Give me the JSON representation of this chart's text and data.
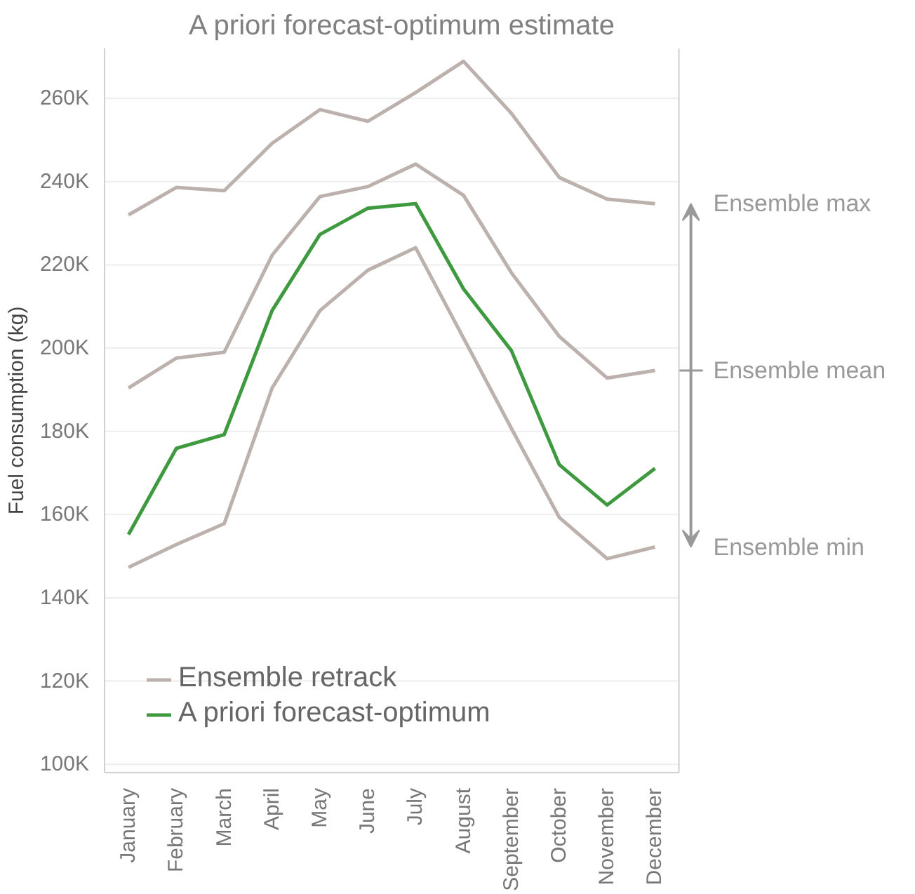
{
  "chart_data": {
    "type": "line",
    "title": "A priori forecast-optimum estimate",
    "ylabel": "Fuel consumption (kg)",
    "categories": [
      "January",
      "February",
      "March",
      "April",
      "May",
      "June",
      "July",
      "August",
      "September",
      "October",
      "November",
      "December"
    ],
    "series": [
      {
        "name": "Ensemble retrack",
        "color": "#bcb1ad",
        "values": [
          232000,
          238600,
          237800,
          249200,
          257300,
          254500,
          261400,
          268900,
          256400,
          241000,
          235800,
          234700
        ]
      },
      {
        "color": "#bcb1ad",
        "values": [
          190400,
          197600,
          199000,
          222300,
          236400,
          238800,
          244200,
          236700,
          218100,
          202800,
          192800,
          194600
        ]
      },
      {
        "color": "#bcb1ad",
        "values": [
          147300,
          152800,
          157800,
          190400,
          209000,
          218700,
          224100,
          202400,
          180700,
          159300,
          149400,
          152200
        ]
      },
      {
        "name": "A priori forecast-optimum",
        "color": "#3f9a3f",
        "values": [
          155200,
          175900,
          179200,
          209000,
          227300,
          233600,
          234700,
          214200,
          199400,
          172000,
          162300,
          171100
        ]
      }
    ],
    "ylim": [
      98000,
      272000
    ],
    "yticks": [
      {
        "value": 100000,
        "label": "100K"
      },
      {
        "value": 120000,
        "label": "120K"
      },
      {
        "value": 140000,
        "label": "140K"
      },
      {
        "value": 160000,
        "label": "160K"
      },
      {
        "value": 180000,
        "label": "180K"
      },
      {
        "value": 200000,
        "label": "200K"
      },
      {
        "value": 220000,
        "label": "220K"
      },
      {
        "value": 240000,
        "label": "240K"
      },
      {
        "value": 260000,
        "label": "260K"
      }
    ],
    "grid": "y",
    "legend": "bottom left",
    "annotations": [
      "Ensemble max",
      "Ensemble mean",
      "Ensemble min"
    ]
  }
}
